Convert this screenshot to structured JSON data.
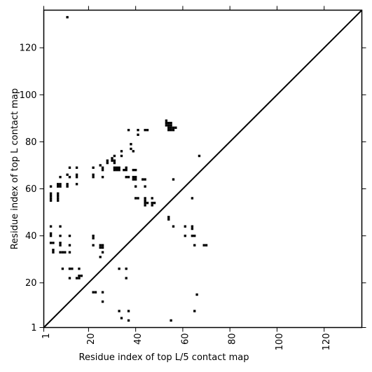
{
  "chart_data": {
    "type": "scatter",
    "xlabel": "Residue index of top L/5 contact map",
    "ylabel": "Residue index of top L contact map",
    "xlim": [
      1,
      136
    ],
    "ylim": [
      1,
      136
    ],
    "x_ticks": [
      {
        "value": 1,
        "label": "1"
      },
      {
        "value": 20,
        "label": "20"
      },
      {
        "value": 40,
        "label": "40"
      },
      {
        "value": 60,
        "label": "60"
      },
      {
        "value": 80,
        "label": "80"
      },
      {
        "value": 100,
        "label": "100"
      },
      {
        "value": 120,
        "label": "120"
      }
    ],
    "y_ticks": [
      {
        "value": 1,
        "label": "1"
      },
      {
        "value": 20,
        "label": "20"
      },
      {
        "value": 40,
        "label": "40"
      },
      {
        "value": 60,
        "label": "60"
      },
      {
        "value": 80,
        "label": "80"
      },
      {
        "value": 100,
        "label": "100"
      },
      {
        "value": 120,
        "label": "120"
      }
    ],
    "diagonal": true,
    "marker_color": "#000000",
    "series": [
      {
        "points": [
          [
            11,
            133
          ],
          [
            4,
            61
          ],
          [
            4,
            58
          ],
          [
            4,
            57
          ],
          [
            4,
            56
          ],
          [
            4,
            55
          ],
          [
            7,
            62
          ],
          [
            8,
            62
          ],
          [
            7,
            61
          ],
          [
            8,
            61
          ],
          [
            7,
            58
          ],
          [
            7,
            57
          ],
          [
            7,
            56
          ],
          [
            7,
            55
          ],
          [
            8,
            65
          ],
          [
            11,
            62
          ],
          [
            11,
            61
          ],
          [
            11,
            66
          ],
          [
            12,
            65
          ],
          [
            12,
            69
          ],
          [
            15,
            69
          ],
          [
            15,
            66
          ],
          [
            15,
            65
          ],
          [
            15,
            62
          ],
          [
            4,
            44
          ],
          [
            4,
            41
          ],
          [
            4,
            40
          ],
          [
            4,
            37
          ],
          [
            5,
            37
          ],
          [
            5,
            34
          ],
          [
            5,
            33
          ],
          [
            8,
            44
          ],
          [
            8,
            40
          ],
          [
            8,
            37
          ],
          [
            8,
            36
          ],
          [
            8,
            33
          ],
          [
            9,
            33
          ],
          [
            10,
            33
          ],
          [
            12,
            40
          ],
          [
            12,
            36
          ],
          [
            12,
            33
          ],
          [
            9,
            26
          ],
          [
            12,
            26
          ],
          [
            13,
            26
          ],
          [
            16,
            26
          ],
          [
            12,
            22
          ],
          [
            15,
            22
          ],
          [
            16,
            22
          ],
          [
            16,
            23
          ],
          [
            17,
            23
          ],
          [
            22,
            69
          ],
          [
            22,
            66
          ],
          [
            22,
            65
          ],
          [
            25,
            70
          ],
          [
            26,
            69
          ],
          [
            26,
            68
          ],
          [
            26,
            65
          ],
          [
            28,
            72
          ],
          [
            28,
            71
          ],
          [
            30,
            73
          ],
          [
            30,
            72
          ],
          [
            31,
            74
          ],
          [
            31,
            72
          ],
          [
            31,
            71
          ],
          [
            31,
            69
          ],
          [
            31,
            68
          ],
          [
            32,
            69
          ],
          [
            32,
            68
          ],
          [
            33,
            69
          ],
          [
            33,
            68
          ],
          [
            35,
            68
          ],
          [
            36,
            69
          ],
          [
            36,
            68
          ],
          [
            34,
            76
          ],
          [
            34,
            74
          ],
          [
            37,
            85
          ],
          [
            38,
            79
          ],
          [
            38,
            77
          ],
          [
            39,
            76
          ],
          [
            36,
            65
          ],
          [
            37,
            65
          ],
          [
            39,
            68
          ],
          [
            40,
            68
          ],
          [
            39,
            65
          ],
          [
            40,
            65
          ],
          [
            39,
            64
          ],
          [
            40,
            64
          ],
          [
            40,
            61
          ],
          [
            40,
            56
          ],
          [
            41,
            56
          ],
          [
            41,
            85
          ],
          [
            41,
            83
          ],
          [
            43,
            64
          ],
          [
            44,
            64
          ],
          [
            44,
            61
          ],
          [
            44,
            56
          ],
          [
            44,
            55
          ],
          [
            44,
            54
          ],
          [
            44,
            53
          ],
          [
            45,
            54
          ],
          [
            47,
            56
          ],
          [
            47,
            54
          ],
          [
            47,
            53
          ],
          [
            48,
            54
          ],
          [
            44,
            85
          ],
          [
            45,
            85
          ],
          [
            53,
            89
          ],
          [
            53,
            88
          ],
          [
            53,
            87
          ],
          [
            54,
            88
          ],
          [
            55,
            88
          ],
          [
            54,
            87
          ],
          [
            55,
            87
          ],
          [
            54,
            86
          ],
          [
            55,
            86
          ],
          [
            56,
            86
          ],
          [
            57,
            86
          ],
          [
            54,
            85
          ],
          [
            55,
            85
          ],
          [
            56,
            85
          ],
          [
            56,
            64
          ],
          [
            56,
            44
          ],
          [
            54,
            48
          ],
          [
            54,
            47
          ],
          [
            22,
            40
          ],
          [
            22,
            39
          ],
          [
            22,
            36
          ],
          [
            25,
            36
          ],
          [
            26,
            36
          ],
          [
            25,
            35
          ],
          [
            26,
            35
          ],
          [
            25,
            31
          ],
          [
            26,
            33
          ],
          [
            22,
            16
          ],
          [
            23,
            16
          ],
          [
            26,
            16
          ],
          [
            26,
            12
          ],
          [
            33,
            26
          ],
          [
            36,
            26
          ],
          [
            36,
            22
          ],
          [
            33,
            8
          ],
          [
            34,
            5
          ],
          [
            37,
            8
          ],
          [
            37,
            4
          ],
          [
            55,
            4
          ],
          [
            61,
            44
          ],
          [
            61,
            40
          ],
          [
            64,
            44
          ],
          [
            64,
            43
          ],
          [
            64,
            40
          ],
          [
            65,
            40
          ],
          [
            65,
            36
          ],
          [
            64,
            56
          ],
          [
            69,
            36
          ],
          [
            70,
            36
          ],
          [
            66,
            15
          ],
          [
            65,
            8
          ],
          [
            67,
            74
          ]
        ]
      }
    ]
  }
}
